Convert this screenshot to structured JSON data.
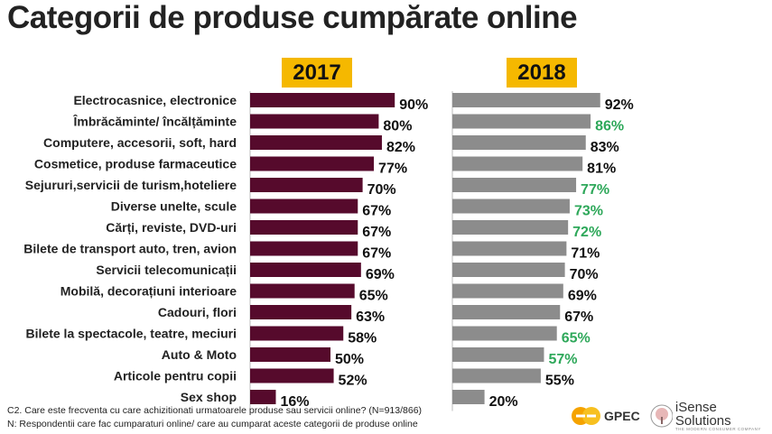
{
  "title": "Categorii de produse cumpărate online",
  "chart_data": {
    "type": "bar",
    "orientation": "horizontal",
    "categories": [
      "Electrocasnice, electronice",
      "Îmbrăcăminte/ încălțăminte",
      "Computere, accesorii, soft, hard",
      "Cosmetice, produse farmaceutice",
      "Sejururi,servicii de turism,hoteliere",
      "Diverse unelte, scule",
      "Cărți, reviste, DVD-uri",
      "Bilete de transport auto, tren, avion",
      "Servicii telecomunicații",
      "Mobilă, decorațiuni interioare",
      "Cadouri, flori",
      "Bilete la spectacole, teatre, meciuri",
      "Auto & Moto",
      "Articole pentru copii",
      "Sex shop"
    ],
    "series": [
      {
        "name": "2017",
        "color": "#560a2c",
        "values": [
          90,
          80,
          82,
          77,
          70,
          67,
          67,
          67,
          69,
          65,
          63,
          58,
          50,
          52,
          16
        ]
      },
      {
        "name": "2018",
        "color": "#8c8c8c",
        "values": [
          92,
          86,
          83,
          81,
          77,
          73,
          72,
          71,
          70,
          69,
          67,
          65,
          57,
          55,
          20
        ],
        "highlighted": [
          false,
          true,
          false,
          false,
          true,
          true,
          true,
          false,
          false,
          false,
          false,
          true,
          true,
          false,
          false
        ]
      }
    ],
    "highlight_color": "#2ea85a",
    "label_color": "#111111",
    "value_suffix": "%",
    "xlim": [
      0,
      100
    ]
  },
  "footnotes": [
    "C2.  Care este frecventa cu care achizitionati urmatoarele produse sau servicii online? (N=913/866)",
    "N: Respondentii care fac cumparaturi online/ care au cumparat aceste categorii de produse online"
  ],
  "logos": {
    "gpec": "GPEC",
    "isense": "iSense Solutions",
    "isense_tagline": "THE MODERN CONSUMER COMPANY"
  },
  "colors": {
    "year_box": "#f5b800"
  }
}
